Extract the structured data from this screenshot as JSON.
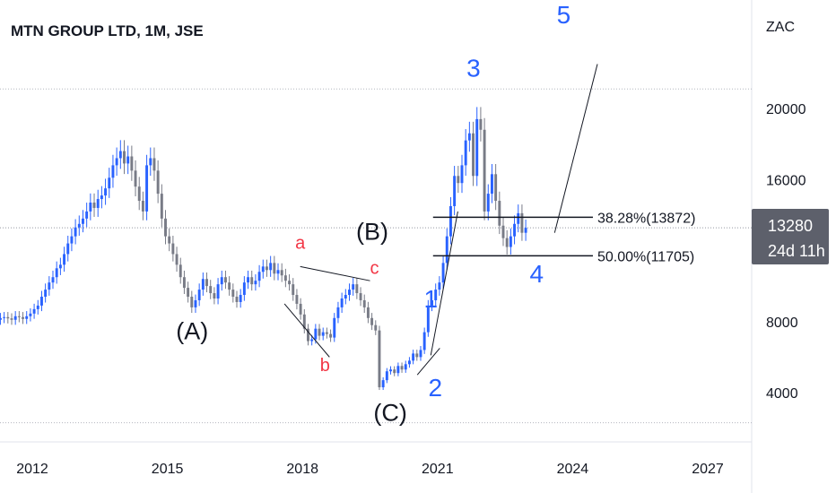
{
  "header": {
    "title": "MTN GROUP LTD, 1M, JSE",
    "currency": "ZAC"
  },
  "price_tag": {
    "price": "13280",
    "countdown": "24d 11h",
    "bg_color": "#5d606b"
  },
  "colors": {
    "up": "#2962ff",
    "down": "#787b86",
    "wave_blue": "#2962ff",
    "wave_red": "#f23645",
    "line": "#131722"
  },
  "chart_data": {
    "type": "candlestick",
    "ylim": [
      2000,
      24000
    ],
    "xlim": [
      2011.0,
      2029.0
    ],
    "y_ticks": [
      4000,
      8000,
      16000,
      20000
    ],
    "y_tick_labels": [
      "4000",
      "8000",
      "16000",
      "20000"
    ],
    "x_ticks": [
      2012,
      2015,
      2018,
      2021,
      2024,
      2027
    ],
    "x_tick_labels": [
      "2012",
      "2015",
      "2018",
      "2021",
      "2024",
      "2027"
    ],
    "candles_close": [
      8200,
      8150,
      8100,
      8200,
      8250,
      8180,
      8100,
      8300,
      8250,
      8150,
      8300,
      8450,
      8700,
      8900,
      9400,
      9800,
      10200,
      10500,
      11000,
      11200,
      11800,
      12400,
      12800,
      13300,
      13500,
      13800,
      14200,
      14700,
      14400,
      14900,
      15100,
      15500,
      16100,
      16800,
      17200,
      17600,
      16900,
      17300,
      16500,
      15600,
      14800,
      14200,
      16800,
      17200,
      16500,
      15200,
      13800,
      12800,
      12400,
      11800,
      11200,
      10500,
      9900,
      9400,
      8800,
      9200,
      9800,
      10400,
      10000,
      9600,
      9300,
      10100,
      10500,
      10200,
      9800,
      9400,
      9100,
      9500,
      10200,
      10500,
      10100,
      10300,
      10800,
      11100,
      10900,
      11300,
      10700,
      10900,
      10600,
      10300,
      10100,
      9500,
      9000,
      8400,
      7600,
      6900,
      7000,
      7600,
      7200,
      7400,
      7300,
      7100,
      8200,
      8800,
      9300,
      9500,
      9800,
      10100,
      9600,
      9200,
      8800,
      8200,
      7800,
      7500,
      4300,
      4700,
      5200,
      5300,
      5100,
      5500,
      5300,
      5600,
      5800,
      6200,
      6000,
      6400,
      7400,
      8900,
      9200,
      9800,
      10200,
      11300,
      12800,
      14500,
      16200,
      15800,
      16800,
      18200,
      18600,
      16200,
      19400,
      18800,
      14200,
      15200,
      16300,
      14800,
      13400,
      12700,
      12200,
      12800,
      13500,
      14100,
      13000,
      13280
    ],
    "levels": [
      {
        "label": "38.28%(13872)",
        "value": 13872
      },
      {
        "label": "50.00%(11705)",
        "value": 11705
      }
    ],
    "last_close": 13280,
    "wave_labels": [
      {
        "text": "(A)",
        "x": 2015.55,
        "y": 7000,
        "style": "black"
      },
      {
        "text": "(B)",
        "x": 2019.55,
        "y": 12600,
        "style": "black"
      },
      {
        "text": "(C)",
        "x": 2019.95,
        "y": 2400,
        "style": "black"
      },
      {
        "text": "a",
        "x": 2017.95,
        "y": 12100,
        "style": "red"
      },
      {
        "text": "b",
        "x": 2018.5,
        "y": 5200,
        "style": "red"
      },
      {
        "text": "c",
        "x": 2019.6,
        "y": 10700,
        "style": "red"
      },
      {
        "text": "1",
        "x": 2020.85,
        "y": 8800,
        "style": "blue"
      },
      {
        "text": "2",
        "x": 2020.95,
        "y": 3800,
        "style": "blue"
      },
      {
        "text": "3",
        "x": 2021.8,
        "y": 21800,
        "style": "blue"
      },
      {
        "text": "4",
        "x": 2023.2,
        "y": 10200,
        "style": "blue"
      },
      {
        "text": "5",
        "x": 2023.8,
        "y": 24800,
        "style": "blue"
      }
    ]
  }
}
